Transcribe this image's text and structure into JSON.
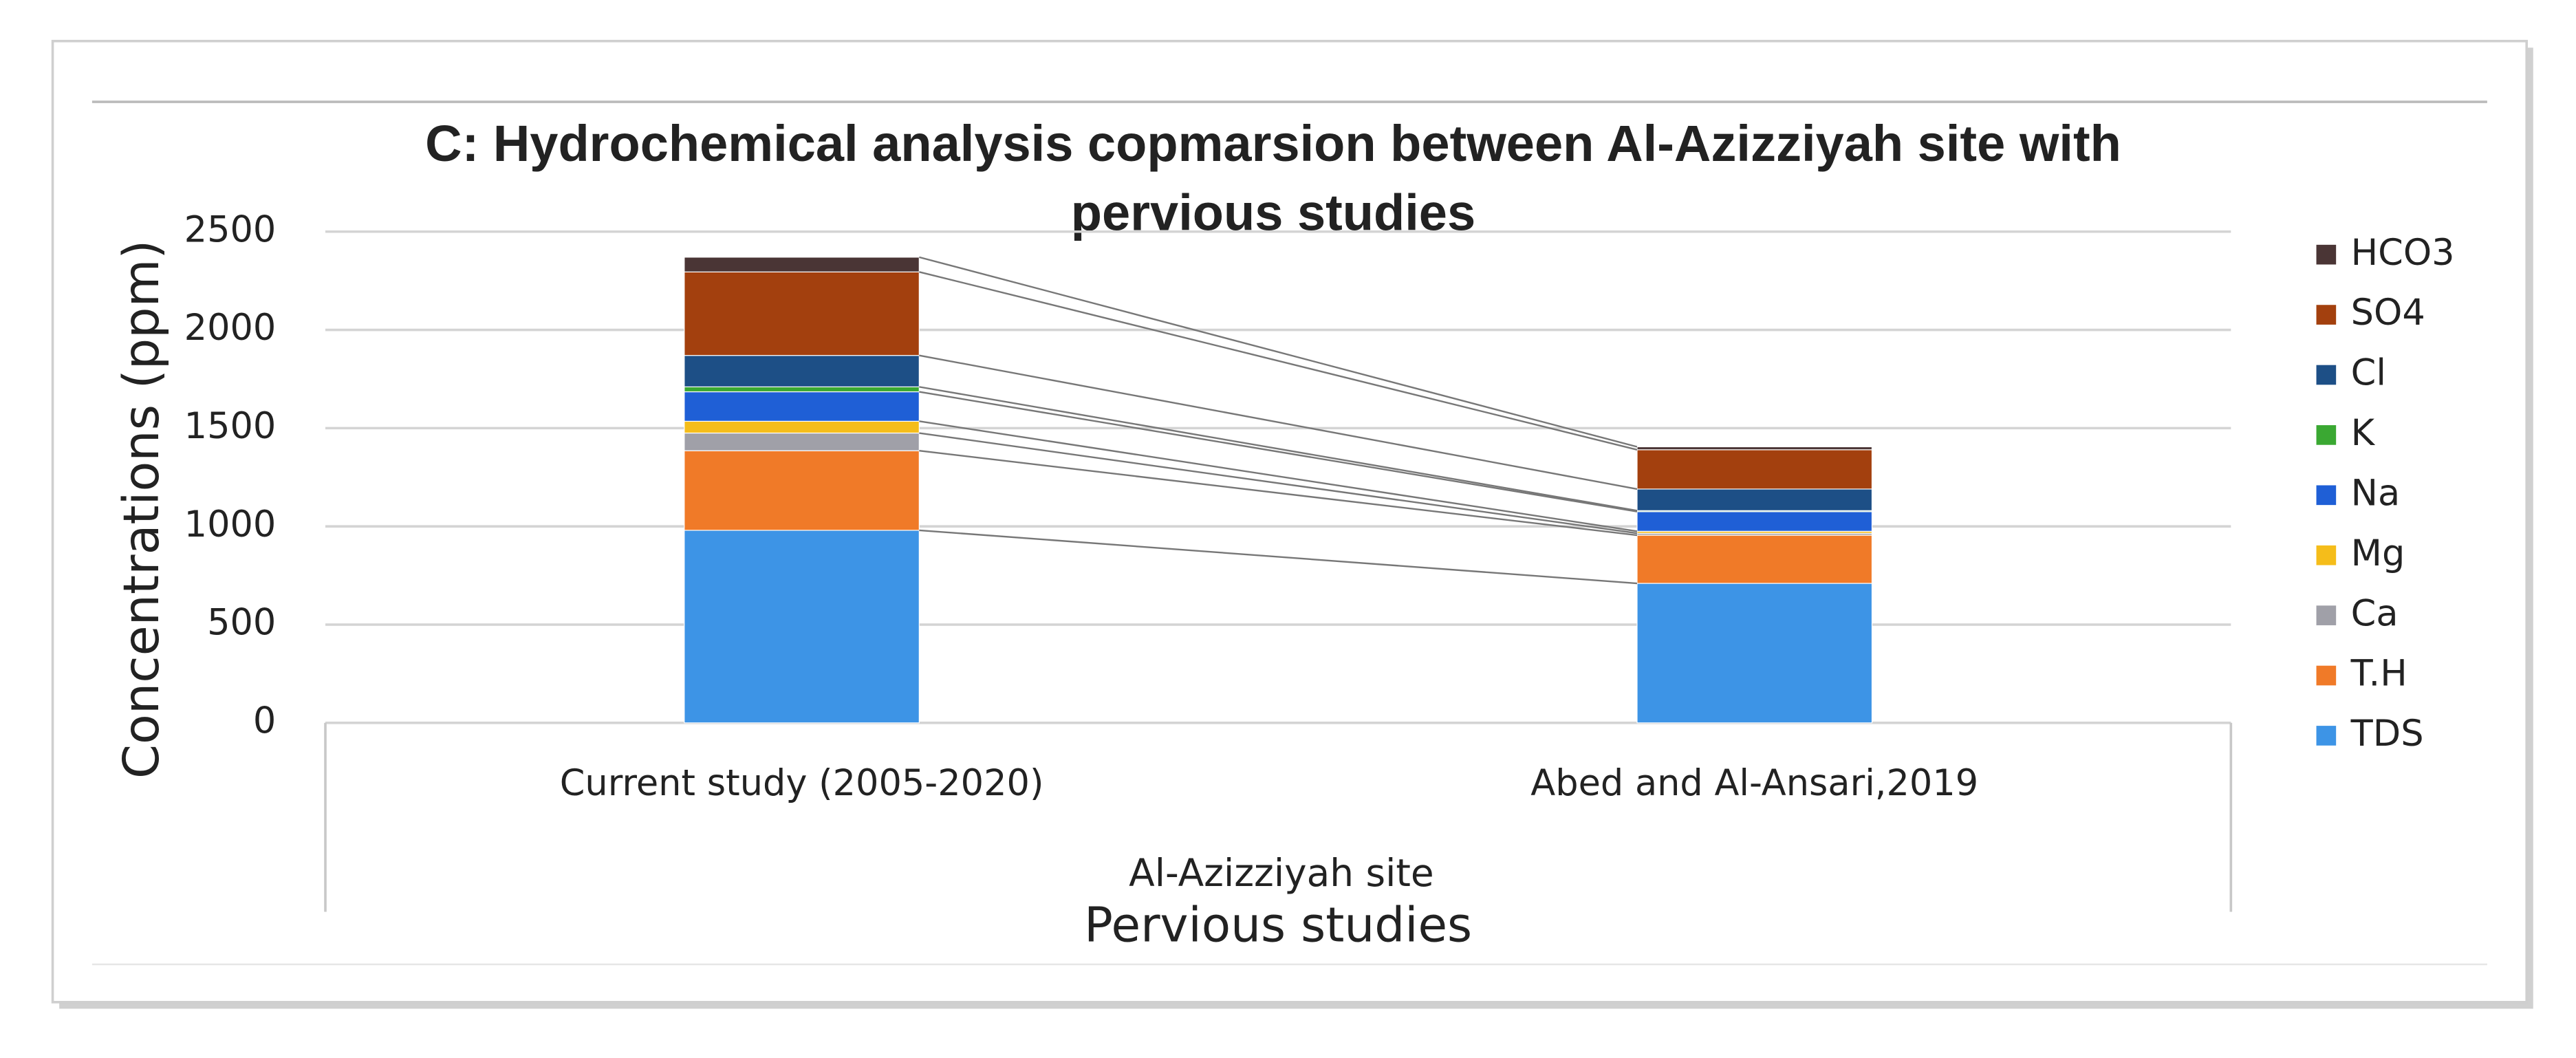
{
  "chart_data": {
    "type": "stacked_bar",
    "title": "C: Hydrochemical analysis copmarsion between Al-Azizziyah site with pervious studies",
    "categories": [
      "Current study (2005-2020)",
      "Abed and Al-Ansari,2019"
    ],
    "group_label": "Al-Azizziyah site",
    "x_label": "Pervious studies",
    "y_label": "Concentrations (ppm)",
    "ylim": [
      0,
      2500
    ],
    "yticks": [
      0,
      500,
      1000,
      1500,
      2000,
      2500
    ],
    "grid": true,
    "legend": "right",
    "series": [
      {
        "name": "TDS",
        "color": "#3d94e6",
        "values": [
          980,
          710
        ]
      },
      {
        "name": "T.H",
        "color": "#f07a28",
        "values": [
          405,
          245
        ]
      },
      {
        "name": "Ca",
        "color": "#a0a0a8",
        "values": [
          90,
          10
        ]
      },
      {
        "name": "Mg",
        "color": "#f5bd1a",
        "values": [
          60,
          10
        ]
      },
      {
        "name": "Na",
        "color": "#1f5fd6",
        "values": [
          150,
          100
        ]
      },
      {
        "name": "K",
        "color": "#3aa832",
        "values": [
          25,
          5
        ]
      },
      {
        "name": "Cl",
        "color": "#1d4f86",
        "values": [
          160,
          110
        ]
      },
      {
        "name": "SO4",
        "color": "#a3400e",
        "values": [
          425,
          200
        ]
      },
      {
        "name": "HCO3",
        "color": "#4a3535",
        "values": [
          75,
          15
        ]
      }
    ]
  }
}
